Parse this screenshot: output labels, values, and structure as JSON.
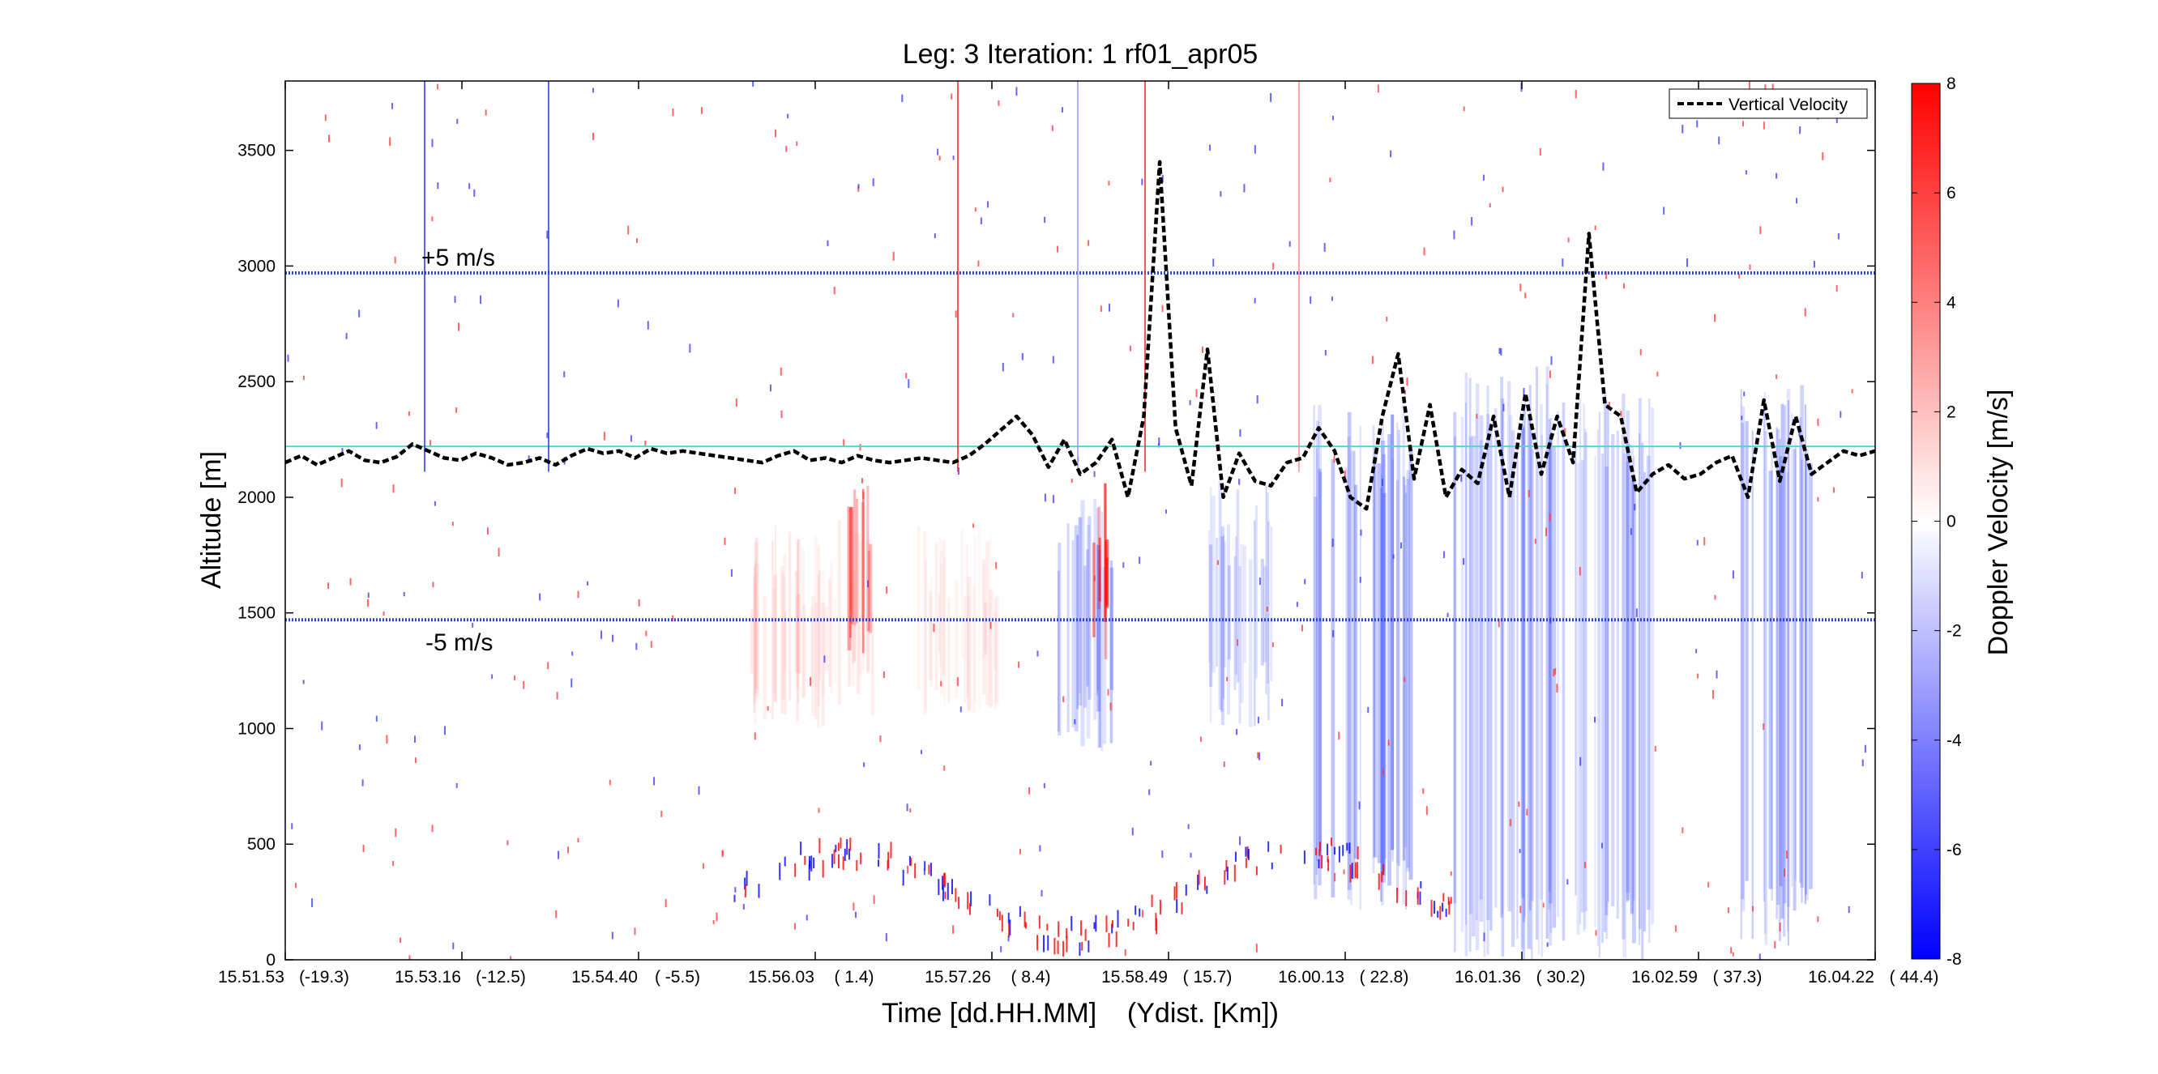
{
  "chart_data": {
    "type": "heatmap",
    "title": "Leg: 3  Iteration: 1  rf01_apr05",
    "xlabel": "Time [dd.HH.MM]    (Ydist. [Km])",
    "ylabel": "Altitude [m]",
    "ylim": [
      0,
      3800
    ],
    "y_ticks": [
      0,
      500,
      1000,
      1500,
      2000,
      2500,
      3000,
      3500
    ],
    "x_ticks": [
      {
        "label": "15.51.53",
        "ydist": "(-19.3)"
      },
      {
        "label": "15.53.16",
        "ydist": "(-12.5)"
      },
      {
        "label": "15.54.40",
        "ydist": "( -5.5)"
      },
      {
        "label": "15.56.03",
        "ydist": "(  1.4)"
      },
      {
        "label": "15.57.26",
        "ydist": "(  8.4)"
      },
      {
        "label": "15.58.49",
        "ydist": "( 15.7)"
      },
      {
        "label": "16.00.13",
        "ydist": "( 22.8)"
      },
      {
        "label": "16.01.36",
        "ydist": "( 30.2)"
      },
      {
        "label": "16.02.59",
        "ydist": "( 37.3)"
      },
      {
        "label": "16.04.22",
        "ydist": "( 44.4)"
      }
    ],
    "colorbar": {
      "label": "Doppler Velocity [m/s]",
      "range": [
        -8,
        8
      ],
      "ticks": [
        -8,
        -6,
        -4,
        -2,
        0,
        2,
        4,
        6,
        8
      ],
      "colors": [
        "#0000ff",
        "#ffffff",
        "#ff0000"
      ]
    },
    "legend": {
      "position": "top-right",
      "entries": [
        "Vertical Velocity"
      ]
    },
    "reference_lines": {
      "plus_label": "+5 m/s",
      "minus_label": "-5 m/s",
      "plus_altitude": 2970,
      "minus_altitude": 1470,
      "flight_altitude": 2220,
      "flight_color": "#40e0d0"
    },
    "vertical_velocity": {
      "name": "Vertical Velocity",
      "x_range": [
        0,
        100
      ],
      "points": [
        [
          0,
          2150
        ],
        [
          1,
          2180
        ],
        [
          2,
          2140
        ],
        [
          3,
          2170
        ],
        [
          4,
          2200
        ],
        [
          5,
          2160
        ],
        [
          6,
          2150
        ],
        [
          7,
          2175
        ],
        [
          8,
          2230
        ],
        [
          9,
          2200
        ],
        [
          10,
          2170
        ],
        [
          11,
          2160
        ],
        [
          12,
          2190
        ],
        [
          13,
          2170
        ],
        [
          14,
          2140
        ],
        [
          15,
          2150
        ],
        [
          16,
          2170
        ],
        [
          17,
          2140
        ],
        [
          18,
          2180
        ],
        [
          19,
          2210
        ],
        [
          20,
          2190
        ],
        [
          21,
          2200
        ],
        [
          22,
          2170
        ],
        [
          23,
          2210
        ],
        [
          24,
          2190
        ],
        [
          25,
          2200
        ],
        [
          26,
          2190
        ],
        [
          27,
          2180
        ],
        [
          28,
          2170
        ],
        [
          29,
          2160
        ],
        [
          30,
          2150
        ],
        [
          31,
          2180
        ],
        [
          32,
          2200
        ],
        [
          33,
          2160
        ],
        [
          34,
          2170
        ],
        [
          35,
          2150
        ],
        [
          36,
          2180
        ],
        [
          37,
          2160
        ],
        [
          38,
          2150
        ],
        [
          39,
          2160
        ],
        [
          40,
          2170
        ],
        [
          41,
          2160
        ],
        [
          42,
          2150
        ],
        [
          43,
          2180
        ],
        [
          44,
          2230
        ],
        [
          45,
          2290
        ],
        [
          46,
          2350
        ],
        [
          47,
          2270
        ],
        [
          48,
          2130
        ],
        [
          49,
          2250
        ],
        [
          50,
          2100
        ],
        [
          51,
          2150
        ],
        [
          52,
          2250
        ],
        [
          53,
          2000
        ],
        [
          54,
          2350
        ],
        [
          55,
          3450
        ],
        [
          56,
          2300
        ],
        [
          57,
          2050
        ],
        [
          58,
          2640
        ],
        [
          59,
          2000
        ],
        [
          60,
          2190
        ],
        [
          61,
          2070
        ],
        [
          62,
          2050
        ],
        [
          63,
          2150
        ],
        [
          64,
          2170
        ],
        [
          65,
          2300
        ],
        [
          66,
          2200
        ],
        [
          67,
          2000
        ],
        [
          68,
          1950
        ],
        [
          69,
          2350
        ],
        [
          70,
          2620
        ],
        [
          71,
          2080
        ],
        [
          72,
          2400
        ],
        [
          73,
          2000
        ],
        [
          74,
          2120
        ],
        [
          75,
          2060
        ],
        [
          76,
          2350
        ],
        [
          77,
          2000
        ],
        [
          78,
          2450
        ],
        [
          79,
          2100
        ],
        [
          80,
          2350
        ],
        [
          81,
          2150
        ],
        [
          82,
          3140
        ],
        [
          83,
          2400
        ],
        [
          84,
          2350
        ],
        [
          85,
          2020
        ],
        [
          86,
          2100
        ],
        [
          87,
          2140
        ],
        [
          88,
          2080
        ],
        [
          89,
          2100
        ],
        [
          90,
          2150
        ],
        [
          91,
          2180
        ],
        [
          92,
          2000
        ],
        [
          93,
          2420
        ],
        [
          94,
          2070
        ],
        [
          95,
          2350
        ],
        [
          96,
          2100
        ],
        [
          97,
          2150
        ],
        [
          98,
          2200
        ],
        [
          99,
          2180
        ],
        [
          100,
          2200
        ]
      ]
    }
  }
}
